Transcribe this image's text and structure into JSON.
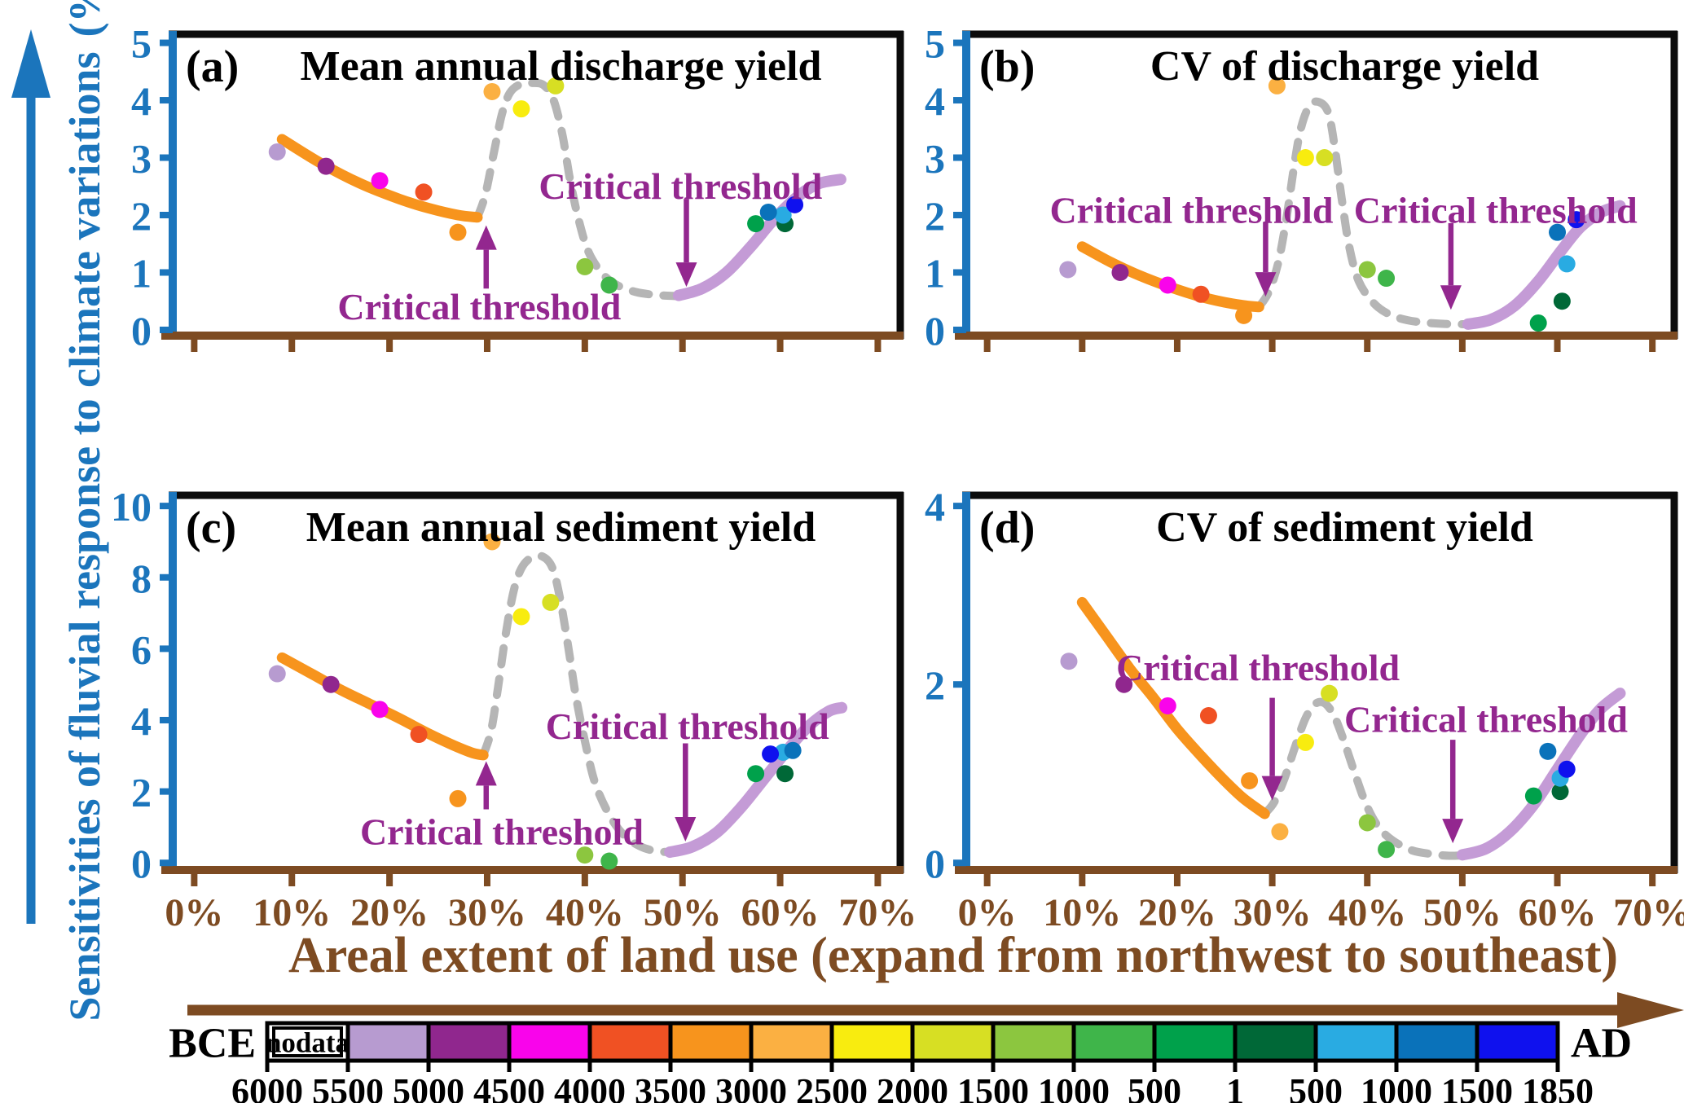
{
  "figure": {
    "y_axis_label_line1": "Sensitivities of fluvial response to climate variations",
    "y_axis_label_line2": "(%/%)",
    "x_axis_label": "Areal extent of land use (expand from northwest to southeast)",
    "x_ticks": [
      0,
      10,
      20,
      30,
      40,
      50,
      60,
      70
    ],
    "x_tick_labels": [
      "0%",
      "10%",
      "20%",
      "30%",
      "40%",
      "50%",
      "60%",
      "70%"
    ],
    "colors": {
      "axis_blue": "#1b75bc",
      "axis_brown": "#7d4b22",
      "annotation_purple": "#93278f",
      "trend_orange": "#f7941d",
      "trend_gray": "#b5b5b5",
      "trend_purple": "#c49bd6",
      "frame_black": "#0b0b0b"
    }
  },
  "legend": {
    "left_label": "BCE",
    "right_label": "AD",
    "nodata_label": "nodata",
    "tick_labels": [
      "6000",
      "5500",
      "5000",
      "4500",
      "4000",
      "3500",
      "3000",
      "2500",
      "2000",
      "1500",
      "1000",
      "500",
      "1",
      "500",
      "1000",
      "1500",
      "1850"
    ],
    "palette": {
      "nodata": "#ffffff",
      "5500": "#b79bd0",
      "5000": "#90278e",
      "4500": "#f904eb",
      "4000": "#f05123",
      "3500": "#f7941d",
      "3000": "#fbb042",
      "2500": "#f8ec0f",
      "2000": "#d7df23",
      "1500": "#8cc63f",
      "1000": "#3fb54a",
      "500": "#00a14b",
      "AD1": "#006837",
      "AD500": "#29abe2",
      "AD1000": "#0a72ba",
      "AD1500": "#0f11ee"
    },
    "cell_order": [
      "nodata",
      "5500",
      "5000",
      "4500",
      "4000",
      "3500",
      "3000",
      "2500",
      "2000",
      "1500",
      "1000",
      "500",
      "AD1",
      "AD500",
      "AD1000",
      "AD1500"
    ]
  },
  "chart_data": [
    {
      "id": "a",
      "panel_label": "(a)",
      "title": "Mean annual discharge yield",
      "type": "scatter",
      "xlim": [
        0,
        70
      ],
      "ylim": [
        0,
        5
      ],
      "yticks": [
        0,
        1,
        2,
        3,
        4,
        5
      ],
      "points": [
        {
          "period": "5500",
          "x": 8.5,
          "y": 3.1
        },
        {
          "period": "5000",
          "x": 13.5,
          "y": 2.85
        },
        {
          "period": "4500",
          "x": 19,
          "y": 2.6
        },
        {
          "period": "4000",
          "x": 23.5,
          "y": 2.4
        },
        {
          "period": "3500",
          "x": 27,
          "y": 1.7
        },
        {
          "period": "3000",
          "x": 30.5,
          "y": 4.15
        },
        {
          "period": "2500",
          "x": 33.5,
          "y": 3.85
        },
        {
          "period": "2000",
          "x": 37,
          "y": 4.25
        },
        {
          "period": "1500",
          "x": 40,
          "y": 1.1
        },
        {
          "period": "1000",
          "x": 42.5,
          "y": 0.78
        },
        {
          "period": "500",
          "x": 57.5,
          "y": 1.85
        },
        {
          "period": "AD1",
          "x": 60.5,
          "y": 1.85
        },
        {
          "period": "AD500",
          "x": 60.3,
          "y": 2.0
        },
        {
          "period": "AD1000",
          "x": 58.8,
          "y": 2.05
        },
        {
          "period": "AD1500",
          "x": 61.5,
          "y": 2.18
        }
      ],
      "orange_curve": [
        [
          9,
          3.32
        ],
        [
          13,
          2.9
        ],
        [
          17,
          2.55
        ],
        [
          21,
          2.28
        ],
        [
          24,
          2.12
        ],
        [
          27,
          2.0
        ],
        [
          29,
          1.96
        ]
      ],
      "gray_dashed_curve": [
        [
          29,
          1.96
        ],
        [
          29.8,
          2.35
        ],
        [
          30.7,
          3.1
        ],
        [
          31.5,
          3.75
        ],
        [
          32.3,
          4.12
        ],
        [
          33.3,
          4.27
        ],
        [
          34.6,
          4.3
        ],
        [
          35.8,
          4.26
        ],
        [
          36.8,
          4.0
        ],
        [
          37.7,
          3.4
        ],
        [
          38.5,
          2.6
        ],
        [
          39.4,
          1.9
        ],
        [
          40.4,
          1.35
        ],
        [
          41.8,
          0.98
        ],
        [
          43.3,
          0.78
        ],
        [
          45.2,
          0.66
        ],
        [
          47.2,
          0.61
        ],
        [
          49.3,
          0.59
        ],
        [
          50.8,
          0.59
        ]
      ],
      "purple_curve": [
        [
          49.6,
          0.6
        ],
        [
          52,
          0.72
        ],
        [
          54.5,
          1.0
        ],
        [
          57,
          1.45
        ],
        [
          59.5,
          1.95
        ],
        [
          62,
          2.35
        ],
        [
          64,
          2.55
        ],
        [
          66.2,
          2.62
        ]
      ],
      "annotations": [
        {
          "text": "Critical threshold",
          "label_x": 29.2,
          "label_y": 0.42,
          "arrow_x": 29.9,
          "arrow_from": 0.72,
          "arrow_to": 1.82
        },
        {
          "text": "Critical threshold",
          "label_x": 49.8,
          "label_y": 2.52,
          "arrow_x": 50.4,
          "arrow_from": 2.28,
          "arrow_to": 0.75
        }
      ]
    },
    {
      "id": "b",
      "panel_label": "(b)",
      "title": "CV of discharge yield",
      "type": "scatter",
      "xlim": [
        0,
        70
      ],
      "ylim": [
        0,
        5
      ],
      "yticks": [
        0,
        1,
        2,
        3,
        4,
        5
      ],
      "points": [
        {
          "period": "5500",
          "x": 8.5,
          "y": 1.05
        },
        {
          "period": "5000",
          "x": 14,
          "y": 1.0
        },
        {
          "period": "4500",
          "x": 19,
          "y": 0.78
        },
        {
          "period": "4000",
          "x": 22.5,
          "y": 0.62
        },
        {
          "period": "3500",
          "x": 27,
          "y": 0.25
        },
        {
          "period": "3000",
          "x": 30.5,
          "y": 4.25
        },
        {
          "period": "2500",
          "x": 33.5,
          "y": 3.0
        },
        {
          "period": "2000",
          "x": 35.5,
          "y": 3.0
        },
        {
          "period": "1500",
          "x": 40,
          "y": 1.05
        },
        {
          "period": "1000",
          "x": 42,
          "y": 0.9
        },
        {
          "period": "500",
          "x": 58,
          "y": 0.12
        },
        {
          "period": "AD1",
          "x": 60.5,
          "y": 0.5
        },
        {
          "period": "AD500",
          "x": 61,
          "y": 1.15
        },
        {
          "period": "AD1000",
          "x": 60,
          "y": 1.7
        },
        {
          "period": "AD1500",
          "x": 62,
          "y": 1.92
        }
      ],
      "orange_curve": [
        [
          10,
          1.45
        ],
        [
          13,
          1.18
        ],
        [
          16,
          0.95
        ],
        [
          19,
          0.76
        ],
        [
          22,
          0.6
        ],
        [
          25,
          0.48
        ],
        [
          27.3,
          0.42
        ],
        [
          28.6,
          0.4
        ]
      ],
      "gray_dashed_curve": [
        [
          28.6,
          0.4
        ],
        [
          29.6,
          0.65
        ],
        [
          30.6,
          1.15
        ],
        [
          31.5,
          1.95
        ],
        [
          32.3,
          2.85
        ],
        [
          33,
          3.5
        ],
        [
          33.9,
          3.9
        ],
        [
          34.9,
          3.97
        ],
        [
          35.9,
          3.78
        ],
        [
          36.6,
          3.15
        ],
        [
          37.3,
          2.3
        ],
        [
          38.1,
          1.45
        ],
        [
          39.1,
          0.85
        ],
        [
          40.6,
          0.48
        ],
        [
          42.2,
          0.28
        ],
        [
          44.2,
          0.17
        ],
        [
          46.6,
          0.12
        ],
        [
          49,
          0.1
        ],
        [
          51.6,
          0.1
        ]
      ],
      "purple_curve": [
        [
          50.6,
          0.1
        ],
        [
          53,
          0.18
        ],
        [
          55.5,
          0.42
        ],
        [
          58,
          0.85
        ],
        [
          60.5,
          1.4
        ],
        [
          62.5,
          1.8
        ],
        [
          64.6,
          2.05
        ],
        [
          66.6,
          2.16
        ]
      ],
      "annotations": [
        {
          "text": "Critical threshold",
          "label_x": 21.5,
          "label_y": 2.1,
          "arrow_x": 29.3,
          "arrow_from": 1.88,
          "arrow_to": 0.58
        },
        {
          "text": "Critical threshold",
          "label_x": 53.5,
          "label_y": 2.1,
          "arrow_x": 48.8,
          "arrow_from": 1.86,
          "arrow_to": 0.35
        }
      ]
    },
    {
      "id": "c",
      "panel_label": "(c)",
      "title": "Mean annual sediment yield",
      "type": "scatter",
      "xlim": [
        0,
        70
      ],
      "ylim": [
        0,
        10
      ],
      "yticks": [
        0,
        2,
        4,
        6,
        8,
        10
      ],
      "points": [
        {
          "period": "5500",
          "x": 8.5,
          "y": 5.3
        },
        {
          "period": "5000",
          "x": 14,
          "y": 5.0
        },
        {
          "period": "4500",
          "x": 19,
          "y": 4.3
        },
        {
          "period": "4000",
          "x": 23,
          "y": 3.6
        },
        {
          "period": "3500",
          "x": 27,
          "y": 1.8
        },
        {
          "period": "3000",
          "x": 30.5,
          "y": 9.0
        },
        {
          "period": "2500",
          "x": 33.5,
          "y": 6.9
        },
        {
          "period": "2000",
          "x": 36.5,
          "y": 7.3
        },
        {
          "period": "1500",
          "x": 40,
          "y": 0.22
        },
        {
          "period": "1000",
          "x": 42.5,
          "y": 0.05
        },
        {
          "period": "500",
          "x": 57.5,
          "y": 2.5
        },
        {
          "period": "AD1",
          "x": 60.5,
          "y": 2.5
        },
        {
          "period": "AD500",
          "x": 60.3,
          "y": 3.1
        },
        {
          "period": "AD1000",
          "x": 61.3,
          "y": 3.15
        },
        {
          "period": "AD1500",
          "x": 59,
          "y": 3.05
        }
      ],
      "orange_curve": [
        [
          9,
          5.75
        ],
        [
          12,
          5.3
        ],
        [
          15,
          4.85
        ],
        [
          18,
          4.45
        ],
        [
          21,
          4.05
        ],
        [
          24,
          3.62
        ],
        [
          26.5,
          3.3
        ],
        [
          28.5,
          3.08
        ],
        [
          29.6,
          3.02
        ]
      ],
      "gray_dashed_curve": [
        [
          29.6,
          3.02
        ],
        [
          30.4,
          3.7
        ],
        [
          31.1,
          4.9
        ],
        [
          31.9,
          6.4
        ],
        [
          32.7,
          7.6
        ],
        [
          33.5,
          8.25
        ],
        [
          34.5,
          8.55
        ],
        [
          35.7,
          8.58
        ],
        [
          36.7,
          8.25
        ],
        [
          37.5,
          7.35
        ],
        [
          38.3,
          6.05
        ],
        [
          39.1,
          4.65
        ],
        [
          40.1,
          3.3
        ],
        [
          41.1,
          2.2
        ],
        [
          42.6,
          1.3
        ],
        [
          44.1,
          0.75
        ],
        [
          45.7,
          0.46
        ],
        [
          47.3,
          0.33
        ],
        [
          49,
          0.3
        ]
      ],
      "purple_curve": [
        [
          48.7,
          0.3
        ],
        [
          51,
          0.45
        ],
        [
          53.5,
          0.85
        ],
        [
          56,
          1.55
        ],
        [
          58.5,
          2.4
        ],
        [
          61,
          3.25
        ],
        [
          63,
          3.85
        ],
        [
          65,
          4.25
        ],
        [
          66.3,
          4.35
        ]
      ],
      "annotations": [
        {
          "text": "Critical threshold",
          "label_x": 31.5,
          "label_y": 0.9,
          "arrow_x": 29.9,
          "arrow_from": 1.5,
          "arrow_to": 2.85
        },
        {
          "text": "Critical threshold",
          "label_x": 50.5,
          "label_y": 3.85,
          "arrow_x": 50.3,
          "arrow_from": 3.35,
          "arrow_to": 0.6
        }
      ]
    },
    {
      "id": "d",
      "panel_label": "(d)",
      "title": "CV of sediment yield",
      "type": "scatter",
      "xlim": [
        0,
        70
      ],
      "ylim": [
        0,
        4
      ],
      "yticks": [
        0,
        2,
        4
      ],
      "points": [
        {
          "period": "5500",
          "x": 8.6,
          "y": 2.26
        },
        {
          "period": "5000",
          "x": 14.4,
          "y": 2.0
        },
        {
          "period": "4500",
          "x": 19,
          "y": 1.76
        },
        {
          "period": "4000",
          "x": 23.3,
          "y": 1.65
        },
        {
          "period": "3500",
          "x": 27.6,
          "y": 0.92
        },
        {
          "period": "3000",
          "x": 30.8,
          "y": 0.35
        },
        {
          "period": "2500",
          "x": 33.5,
          "y": 1.35
        },
        {
          "period": "2000",
          "x": 36,
          "y": 1.9
        },
        {
          "period": "1500",
          "x": 40,
          "y": 0.45
        },
        {
          "period": "1000",
          "x": 42,
          "y": 0.15
        },
        {
          "period": "500",
          "x": 57.5,
          "y": 0.75
        },
        {
          "period": "AD1",
          "x": 60.3,
          "y": 0.8
        },
        {
          "period": "AD500",
          "x": 60.3,
          "y": 0.95
        },
        {
          "period": "AD1000",
          "x": 59,
          "y": 1.25
        },
        {
          "period": "AD1500",
          "x": 61,
          "y": 1.05
        }
      ],
      "orange_curve": [
        [
          10,
          2.92
        ],
        [
          12.5,
          2.55
        ],
        [
          15,
          2.18
        ],
        [
          17.5,
          1.85
        ],
        [
          20,
          1.5
        ],
        [
          22.5,
          1.2
        ],
        [
          25,
          0.92
        ],
        [
          27,
          0.72
        ],
        [
          29.2,
          0.55
        ]
      ],
      "gray_dashed_curve": [
        [
          29.2,
          0.55
        ],
        [
          30.2,
          0.68
        ],
        [
          31.3,
          0.95
        ],
        [
          32.4,
          1.3
        ],
        [
          33.5,
          1.62
        ],
        [
          34.5,
          1.78
        ],
        [
          35.5,
          1.79
        ],
        [
          36.5,
          1.65
        ],
        [
          37.5,
          1.38
        ],
        [
          38.7,
          1.0
        ],
        [
          39.9,
          0.65
        ],
        [
          41.2,
          0.4
        ],
        [
          42.7,
          0.25
        ],
        [
          44.7,
          0.14
        ],
        [
          46.7,
          0.1
        ],
        [
          48.7,
          0.08
        ],
        [
          50.7,
          0.09
        ]
      ],
      "purple_curve": [
        [
          50,
          0.09
        ],
        [
          52.5,
          0.16
        ],
        [
          55,
          0.35
        ],
        [
          57.5,
          0.65
        ],
        [
          60,
          1.05
        ],
        [
          62.5,
          1.45
        ],
        [
          64.5,
          1.72
        ],
        [
          66.6,
          1.9
        ]
      ],
      "annotations": [
        {
          "text": "Critical threshold",
          "label_x": 28.5,
          "label_y": 2.2,
          "arrow_x": 30,
          "arrow_from": 1.85,
          "arrow_to": 0.7
        },
        {
          "text": "Critical threshold",
          "label_x": 52.5,
          "label_y": 1.62,
          "arrow_x": 49,
          "arrow_from": 1.38,
          "arrow_to": 0.22
        }
      ]
    }
  ]
}
